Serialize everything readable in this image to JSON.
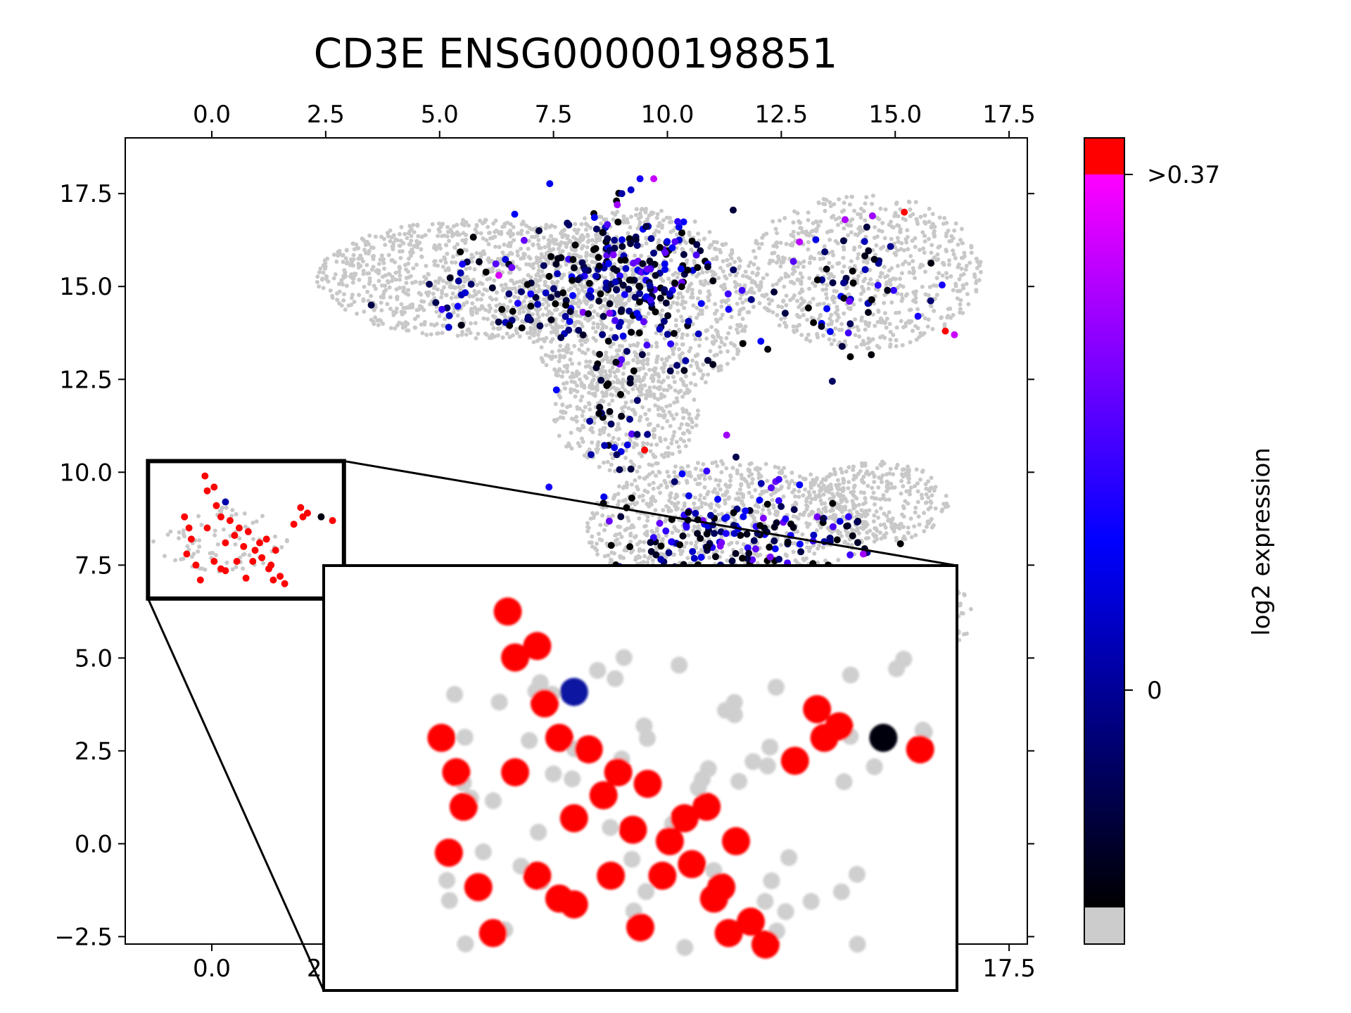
{
  "chart_data": {
    "type": "scatter",
    "title": "CD3E ENSG00000198851",
    "xlabel": "",
    "ylabel": "",
    "xlim": [
      -1.9,
      17.9
    ],
    "ylim": [
      -2.7,
      19.0
    ],
    "x_ticks": [
      "0.0",
      "2.5",
      "5.0",
      "7.5",
      "10.0",
      "12.5",
      "15.0",
      "17.5"
    ],
    "x_tick_values": [
      0,
      2.5,
      5,
      7.5,
      10,
      12.5,
      15,
      17.5
    ],
    "y_ticks": [
      "−2.5",
      "0.0",
      "2.5",
      "5.0",
      "7.5",
      "10.0",
      "12.5",
      "15.0",
      "17.5"
    ],
    "y_tick_values": [
      -2.5,
      0,
      2.5,
      5,
      7.5,
      10,
      12.5,
      15,
      17.5
    ],
    "grid": false,
    "colorbar": {
      "label": "log2 expression",
      "tick_labels": [
        ">0.37",
        "0"
      ],
      "below_threshold_color": "#cccccc",
      "colormap": [
        "#000000",
        "#0000ff",
        "#ff00ff"
      ],
      "above_max_color": "#ff0000"
    },
    "background_clusters": [
      {
        "name": "upper-left",
        "cx": 5.9,
        "cy": 15.2,
        "rx": 3.6,
        "ry": 1.6,
        "n": 1100
      },
      {
        "name": "upper-center",
        "cx": 9.3,
        "cy": 14.5,
        "rx": 2.6,
        "ry": 2.6,
        "n": 1000
      },
      {
        "name": "center-column",
        "cx": 9.1,
        "cy": 11.6,
        "rx": 1.6,
        "ry": 1.6,
        "n": 380
      },
      {
        "name": "upper-right",
        "cx": 14.3,
        "cy": 15.4,
        "rx": 2.6,
        "ry": 2.1,
        "n": 750
      },
      {
        "name": "lower-center",
        "cx": 11.3,
        "cy": 8.5,
        "rx": 3.1,
        "ry": 1.8,
        "n": 950
      },
      {
        "name": "lower-right",
        "cx": 14.6,
        "cy": 9.2,
        "rx": 1.6,
        "ry": 1.1,
        "n": 320
      },
      {
        "name": "lower-far-right",
        "cx": 16.1,
        "cy": 6.2,
        "rx": 0.7,
        "ry": 0.8,
        "n": 60
      },
      {
        "name": "left-small",
        "cx": 0.2,
        "cy": 8.2,
        "rx": 1.6,
        "ry": 0.9,
        "n": 80
      }
    ],
    "expressed_cells": [
      {
        "x": 9.4,
        "y": 17.9,
        "v": 0.2
      },
      {
        "x": 9.2,
        "y": 17.6,
        "v": 0.15
      },
      {
        "x": 9.0,
        "y": 17.5,
        "v": 0.12
      },
      {
        "x": 9.7,
        "y": 17.9,
        "v": 0.33
      },
      {
        "x": 8.9,
        "y": 17.2,
        "v": 0.3
      },
      {
        "x": 6.3,
        "y": 15.3,
        "v": 0.34
      },
      {
        "x": 12.9,
        "y": 16.2,
        "v": 0.32
      },
      {
        "x": 13.9,
        "y": 16.8,
        "v": 0.31
      },
      {
        "x": 14.5,
        "y": 16.9,
        "v": 0.3
      },
      {
        "x": 16.3,
        "y": 13.7,
        "v": 0.33
      },
      {
        "x": 16.1,
        "y": 13.8,
        "v": 0.5
      },
      {
        "x": 15.2,
        "y": 17.0,
        "v": 0.5
      },
      {
        "x": 9.5,
        "y": 10.6,
        "v": 0.5
      },
      {
        "x": 11.3,
        "y": 11.0,
        "v": 0.3
      },
      {
        "x": 14.3,
        "y": 7.8,
        "v": 0.3
      },
      {
        "x": 5.5,
        "y": 15.6,
        "v": 0.2
      },
      {
        "x": 3.5,
        "y": 14.5,
        "v": 0.05
      },
      {
        "x": 5.2,
        "y": 13.9,
        "v": 0.15
      },
      {
        "x": 7.0,
        "y": 14.8,
        "v": 0.2
      },
      {
        "x": 10.4,
        "y": 13.0,
        "v": 0.12
      },
      {
        "x": 11.0,
        "y": 12.9,
        "v": 0.02
      },
      {
        "x": 13.5,
        "y": 14.4,
        "v": 0.18
      },
      {
        "x": 15.5,
        "y": 14.2,
        "v": 0.2
      },
      {
        "x": 7.4,
        "y": 9.6,
        "v": 0.2
      }
    ],
    "inset": {
      "x_range": [
        -1.4,
        2.9
      ],
      "y_range": [
        6.6,
        10.3
      ],
      "points": [
        {
          "x": -0.6,
          "y": 8.8
        },
        {
          "x": -0.5,
          "y": 8.5
        },
        {
          "x": -0.45,
          "y": 8.2
        },
        {
          "x": -0.55,
          "y": 7.8
        },
        {
          "x": -0.35,
          "y": 7.5
        },
        {
          "x": -0.15,
          "y": 9.9
        },
        {
          "x": 0.05,
          "y": 9.6
        },
        {
          "x": -0.1,
          "y": 9.5
        },
        {
          "x": 0.1,
          "y": 9.1
        },
        {
          "x": 0.2,
          "y": 8.8
        },
        {
          "x": 0.4,
          "y": 8.7
        },
        {
          "x": 0.5,
          "y": 8.3
        },
        {
          "x": 0.3,
          "y": 8.1
        },
        {
          "x": 0.6,
          "y": 8.5
        },
        {
          "x": 0.8,
          "y": 8.4
        },
        {
          "x": 0.7,
          "y": 8.0
        },
        {
          "x": 0.95,
          "y": 7.9
        },
        {
          "x": 1.1,
          "y": 7.7
        },
        {
          "x": 1.25,
          "y": 7.4
        },
        {
          "x": 1.35,
          "y": 7.1
        },
        {
          "x": 1.5,
          "y": 7.2
        },
        {
          "x": 1.6,
          "y": 7.0
        },
        {
          "x": 1.3,
          "y": 7.5
        },
        {
          "x": 0.2,
          "y": 7.4
        },
        {
          "x": 0.05,
          "y": 7.6
        },
        {
          "x": -0.25,
          "y": 7.1
        },
        {
          "x": -0.1,
          "y": 8.5
        },
        {
          "x": 0.9,
          "y": 7.6
        },
        {
          "x": 1.8,
          "y": 8.6
        },
        {
          "x": 2.0,
          "y": 8.8
        },
        {
          "x": 1.95,
          "y": 9.05
        },
        {
          "x": 2.1,
          "y": 8.9
        },
        {
          "x": 0.75,
          "y": 7.15
        },
        {
          "x": 0.3,
          "y": 7.35
        },
        {
          "x": 1.05,
          "y": 8.1
        },
        {
          "x": 1.4,
          "y": 7.9
        },
        {
          "x": 2.65,
          "y": 8.7
        },
        {
          "x": 0.55,
          "y": 7.6
        },
        {
          "x": 1.2,
          "y": 8.2
        }
      ],
      "blue_point": {
        "x": 0.3,
        "y": 9.2
      },
      "black_point": {
        "x": 2.4,
        "y": 8.8
      }
    }
  }
}
